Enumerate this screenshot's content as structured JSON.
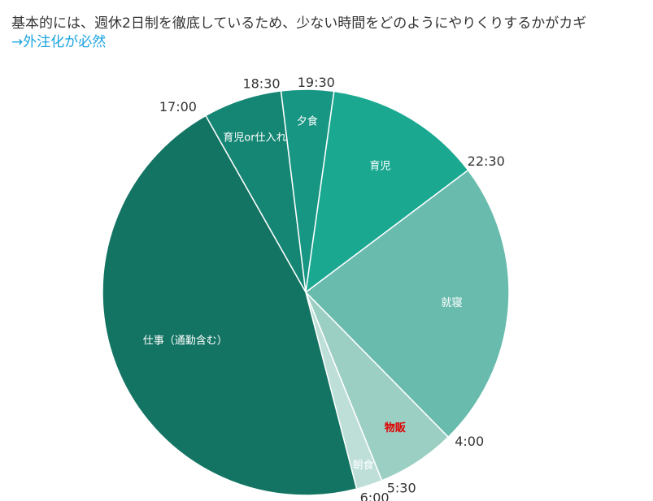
{
  "headline": {
    "line1": "基本的には、週休2日制を徹底しているため、少ない時間をどのようにやりくりするかがカギ",
    "line2": "→外注化が必然"
  },
  "chart_data": {
    "type": "pie",
    "unit": "hours",
    "start_time": "17:00",
    "series": [
      {
        "name": "",
        "slices": [
          {
            "label": "育児or仕入れ",
            "start": "17:00",
            "end": "18:30",
            "hours": 1.5,
            "color": "#158674",
            "label_color": "#ffffff",
            "label_bold": false
          },
          {
            "label": "夕食",
            "start": "18:30",
            "end": "19:30",
            "hours": 1.0,
            "color": "#179683",
            "label_color": "#ffffff",
            "label_bold": false
          },
          {
            "label": "育児",
            "start": "19:30",
            "end": "22:30",
            "hours": 3.0,
            "color": "#1aa891",
            "label_color": "#ffffff",
            "label_bold": false
          },
          {
            "label": "就寝",
            "start": "22:30",
            "end": "4:00",
            "hours": 5.5,
            "color": "#69bbad",
            "label_color": "#ffffff",
            "label_bold": false
          },
          {
            "label": "物販",
            "start": "4:00",
            "end": "5:30",
            "hours": 1.5,
            "color": "#9ccfc3",
            "label_color": "#e00000",
            "label_bold": true
          },
          {
            "label": "朝食",
            "start": "5:30",
            "end": "6:00",
            "hours": 0.5,
            "color": "#bddfd8",
            "label_color": "#ffffff",
            "label_bold": false
          },
          {
            "label": "仕事（通勤含む）",
            "start": "6:00",
            "end": "17:00",
            "hours": 11.0,
            "color": "#137463",
            "label_color": "#ffffff",
            "label_bold": false
          }
        ]
      }
    ],
    "boundary_labels": [
      "17:00",
      "18:30",
      "19:30",
      "22:30",
      "4:00",
      "5:30",
      "6:00"
    ],
    "legend": "none",
    "title": ""
  }
}
